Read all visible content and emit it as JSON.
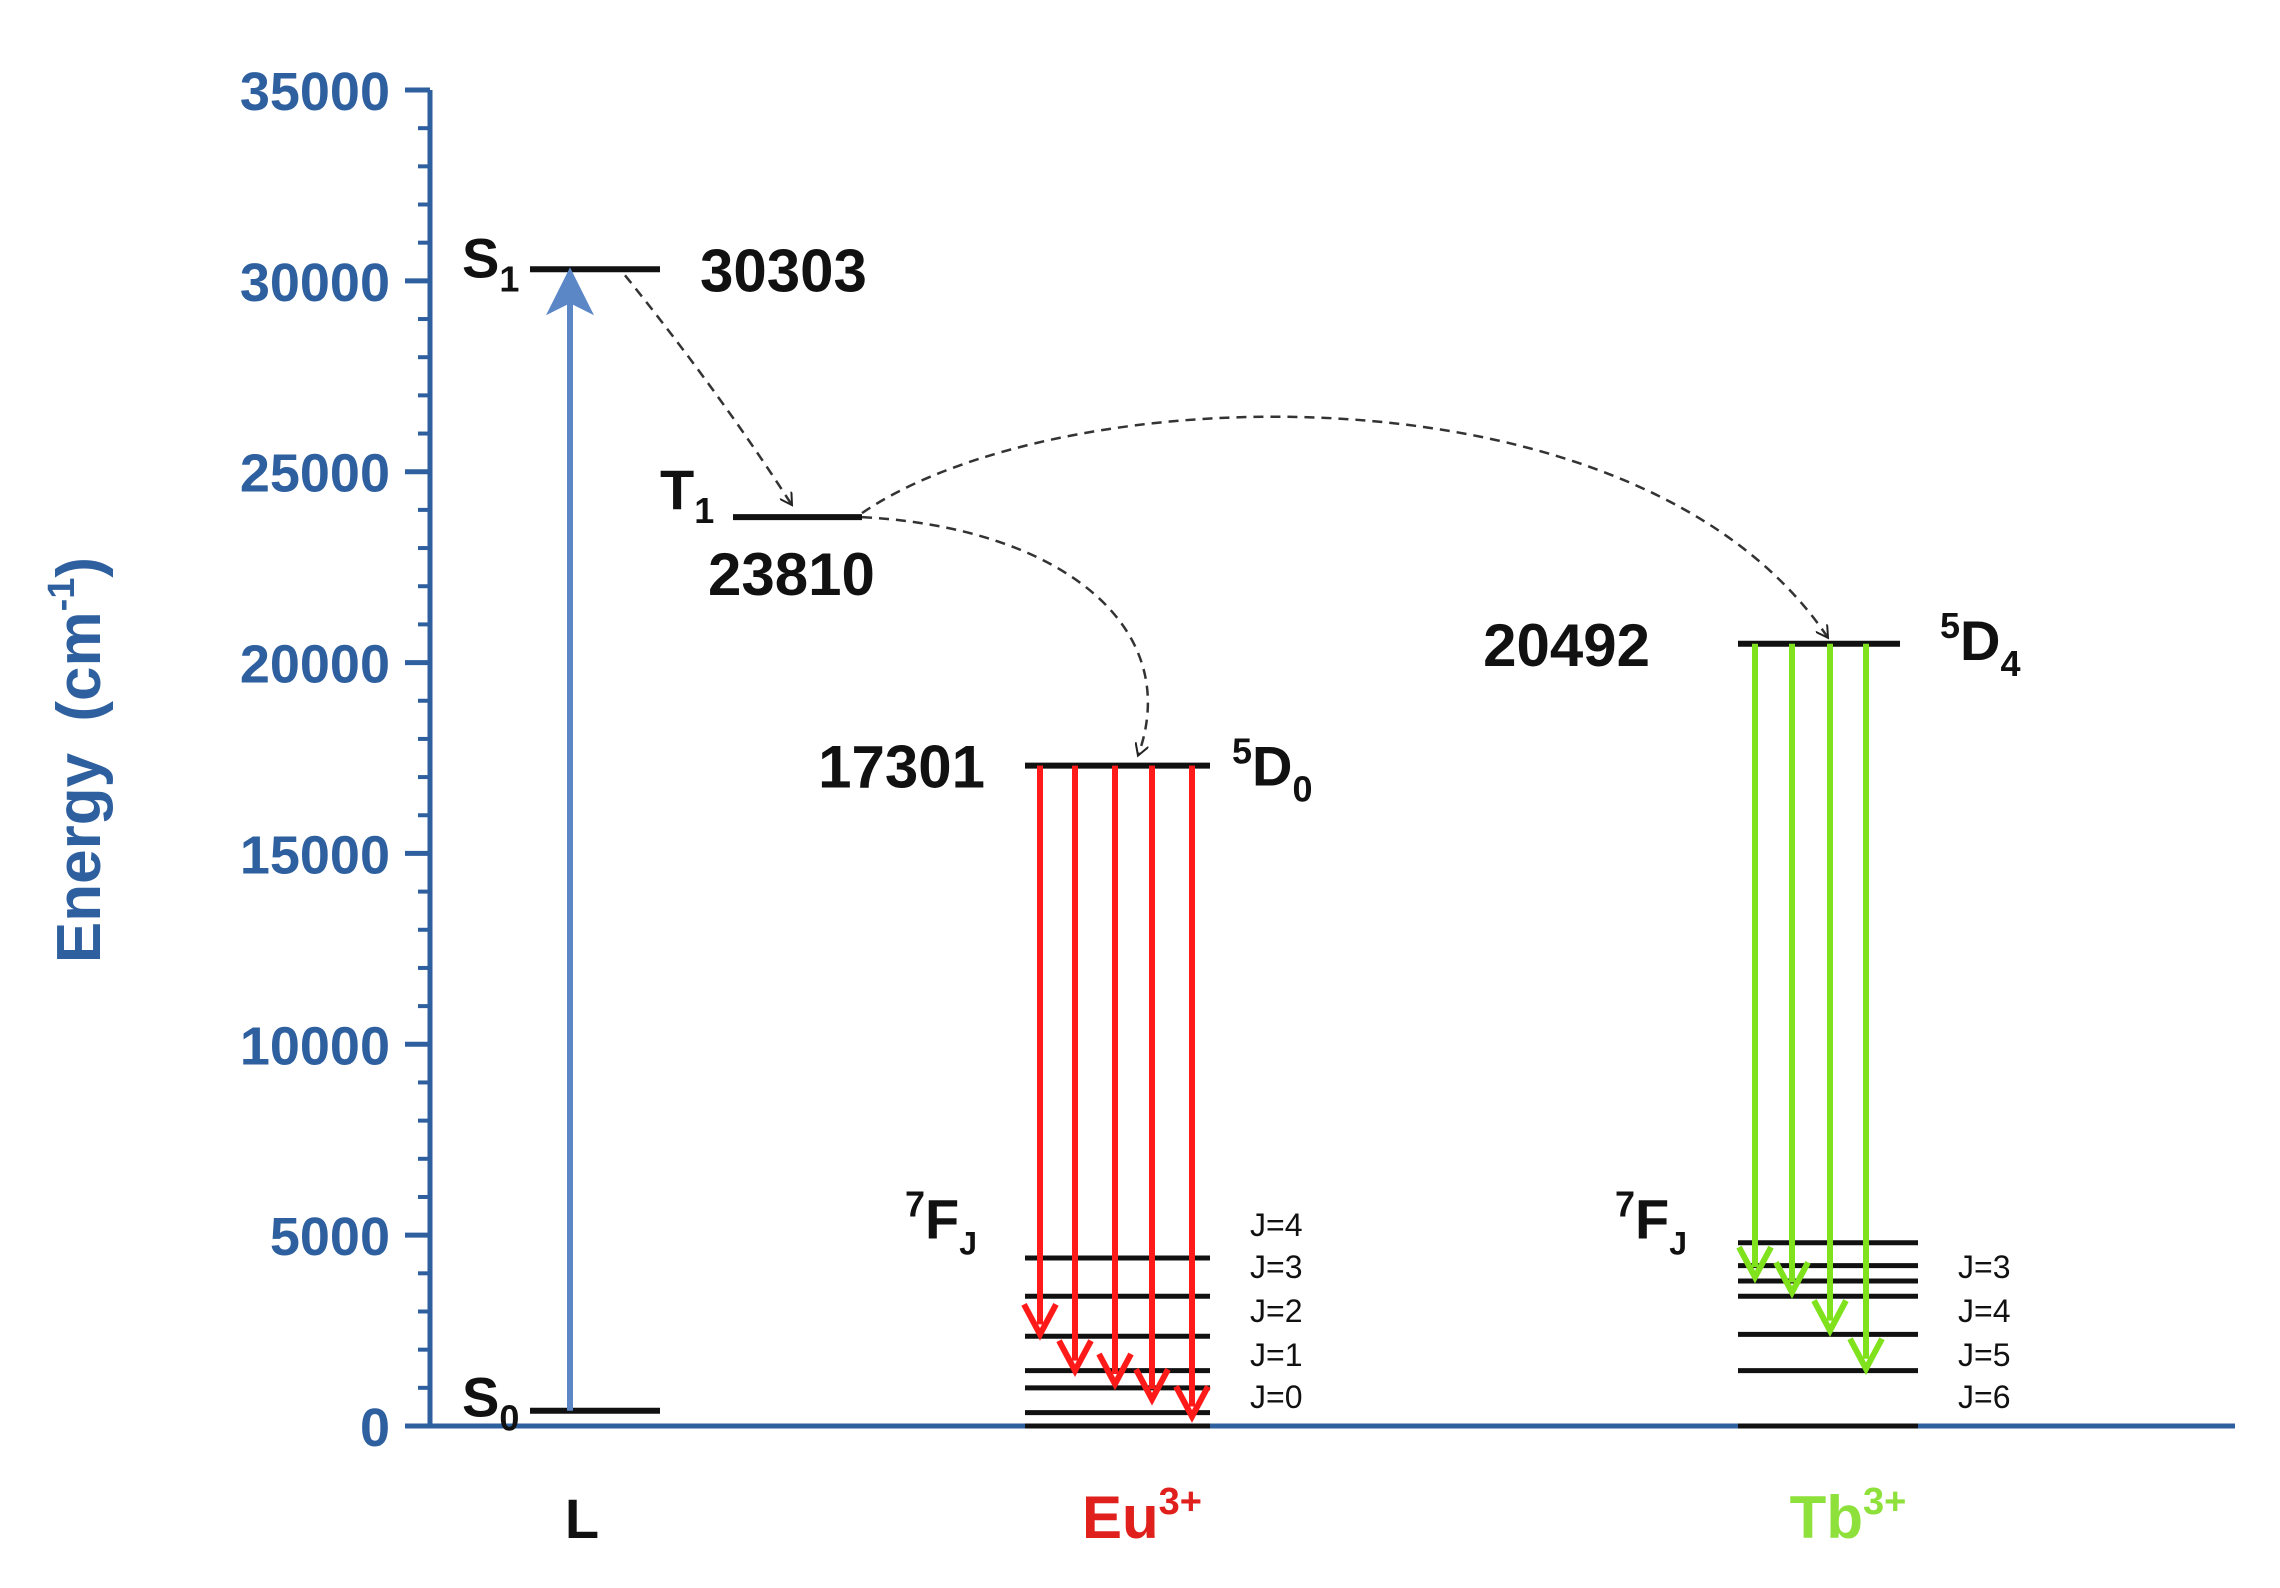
{
  "colors": {
    "axis": "#2e5f9e",
    "level": "#111111",
    "eu_arrow": "#ff1a1a",
    "tb_arrow": "#7fe21c",
    "eu_label": "#e0201c",
    "tb_label": "#8ee03a",
    "excitation": "#5b87c6"
  },
  "axis": {
    "label_main": "Energy",
    "label_unit_prefix": "(cm",
    "label_unit_sup": "-1",
    "label_unit_suffix": ")",
    "ylim": [
      0,
      35000
    ],
    "ticks": [
      {
        "value": 0,
        "label": "0"
      },
      {
        "value": 5000,
        "label": "5000"
      },
      {
        "value": 10000,
        "label": "10000"
      },
      {
        "value": 15000,
        "label": "15000"
      },
      {
        "value": 20000,
        "label": "20000"
      },
      {
        "value": 25000,
        "label": "25000"
      },
      {
        "value": 30000,
        "label": "30000"
      },
      {
        "value": 35000,
        "label": "35000"
      }
    ]
  },
  "columns": {
    "ligand": {
      "label": "L"
    },
    "eu": {
      "label": "Eu",
      "sup": "3+"
    },
    "tb": {
      "label": "Tb",
      "sup": "3+"
    }
  },
  "ligand": {
    "s1": {
      "name": "S",
      "sub": "1",
      "energy": 30303,
      "value_label": "30303"
    },
    "t1": {
      "name": "T",
      "sub": "1",
      "energy": 23810,
      "value_label": "23810"
    },
    "s0": {
      "name": "S",
      "sub": "0",
      "energy": 400
    }
  },
  "eu": {
    "emitting": {
      "sup": "5",
      "name": "D",
      "sub": "0",
      "energy": 17301,
      "value_label": "17301"
    },
    "ground_term": {
      "sup": "7",
      "name": "F",
      "sub": "J"
    },
    "levels": [
      0,
      350,
      1000,
      1450,
      2350,
      3400,
      4400
    ],
    "j_labels": [
      "J=4",
      "J=3",
      "J=2",
      "J=1",
      "J=0"
    ],
    "arrow_targets": [
      2400,
      1450,
      1100,
      700,
      250
    ]
  },
  "tb": {
    "emitting": {
      "sup": "5",
      "name": "D",
      "sub": "4",
      "energy": 20492,
      "value_label": "20492"
    },
    "ground_term": {
      "sup": "7",
      "name": "F",
      "sub": "J"
    },
    "levels": [
      0,
      1450,
      2400,
      3400,
      3800,
      4200,
      4800
    ],
    "j_labels": [
      "J=3",
      "J=4",
      "J=5",
      "J=6"
    ],
    "arrow_targets": [
      3900,
      3500,
      2500,
      1500
    ]
  }
}
